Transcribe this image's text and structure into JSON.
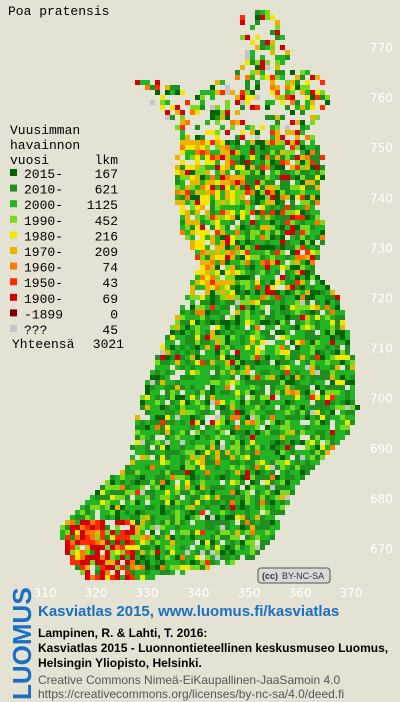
{
  "title": "Poa pratensis",
  "legend": {
    "heading": [
      "Vuusimman",
      "havainnon",
      "vuosi"
    ],
    "count_heading": "lkm",
    "items": [
      {
        "label": "2015-",
        "count": 167,
        "color": "#006400"
      },
      {
        "label": "2010-",
        "count": 621,
        "color": "#1f8f1f"
      },
      {
        "label": "2000-",
        "count": 1125,
        "color": "#22b422"
      },
      {
        "label": "1990-",
        "count": 452,
        "color": "#7ad81e"
      },
      {
        "label": "1980-",
        "count": 216,
        "color": "#f5e600"
      },
      {
        "label": "1970-",
        "count": 209,
        "color": "#e8b400"
      },
      {
        "label": "1960-",
        "count": 74,
        "color": "#ff7800"
      },
      {
        "label": "1950-",
        "count": 43,
        "color": "#ff2a00"
      },
      {
        "label": "1900-",
        "count": 69,
        "color": "#d20000"
      },
      {
        "label": "-1899",
        "count": 0,
        "color": "#7a0000"
      },
      {
        "label": "???",
        "count": 45,
        "color": "#c4c4c4"
      }
    ],
    "total_label": "Yhteensä",
    "total": 3021
  },
  "grid_labels": {
    "north": [
      770,
      760,
      750,
      740,
      730,
      720,
      710,
      700,
      690,
      680,
      670
    ],
    "east": [
      310,
      320,
      330,
      340,
      350,
      360,
      370
    ]
  },
  "badge": {
    "cc": "(cc)",
    "text": "BY-NC-SA"
  },
  "footer": {
    "logo": "LUOMUS",
    "link": "Kasviatlas 2015, www.luomus.fi/kasviatlas",
    "citation": [
      "Lampinen, R. & Lahti, T. 2016:",
      "Kasviatlas 2015 - Luonnontieteellinen keskusmuseo Luomus,",
      "Helsingin Yliopisto, Helsinki."
    ],
    "license": [
      "Creative Commons Nimeä-EiKaupallinen-JaaSamoin 4.0",
      "https://creativecommons.org/licenses/by-nc-sa/4.0/deed.fi"
    ]
  }
}
